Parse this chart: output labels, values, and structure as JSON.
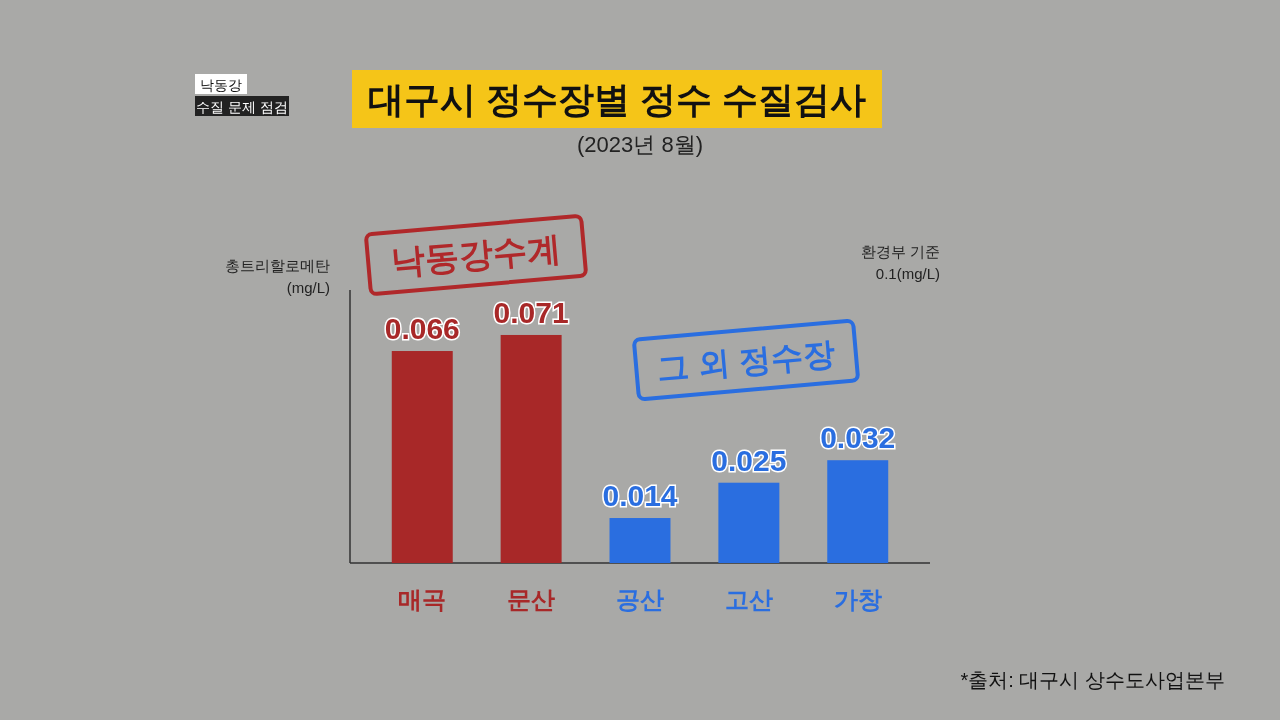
{
  "chart_data": {
    "type": "bar",
    "title": "대구시 정수장별 정수 수질검사",
    "subtitle": "(2023년 8월)",
    "ylabel": "총트리할로메탄 (mg/L)",
    "categories": [
      "매곡",
      "문산",
      "공산",
      "고산",
      "가창"
    ],
    "values": [
      0.066,
      0.071,
      0.014,
      0.025,
      0.032
    ],
    "colors": [
      "#a82828",
      "#a82828",
      "#2a6ee0",
      "#2a6ee0",
      "#2a6ee0"
    ],
    "ylim": [
      0,
      0.085
    ],
    "tick_labels": "x",
    "data_labels": true,
    "annotations": [
      "낙동강",
      "수질 문제 점검",
      "환경부 기준 0.1(mg/L)",
      "낙동강수계",
      "그 외 정수장",
      "*출처: 대구시 상수도사업본부"
    ]
  }
}
